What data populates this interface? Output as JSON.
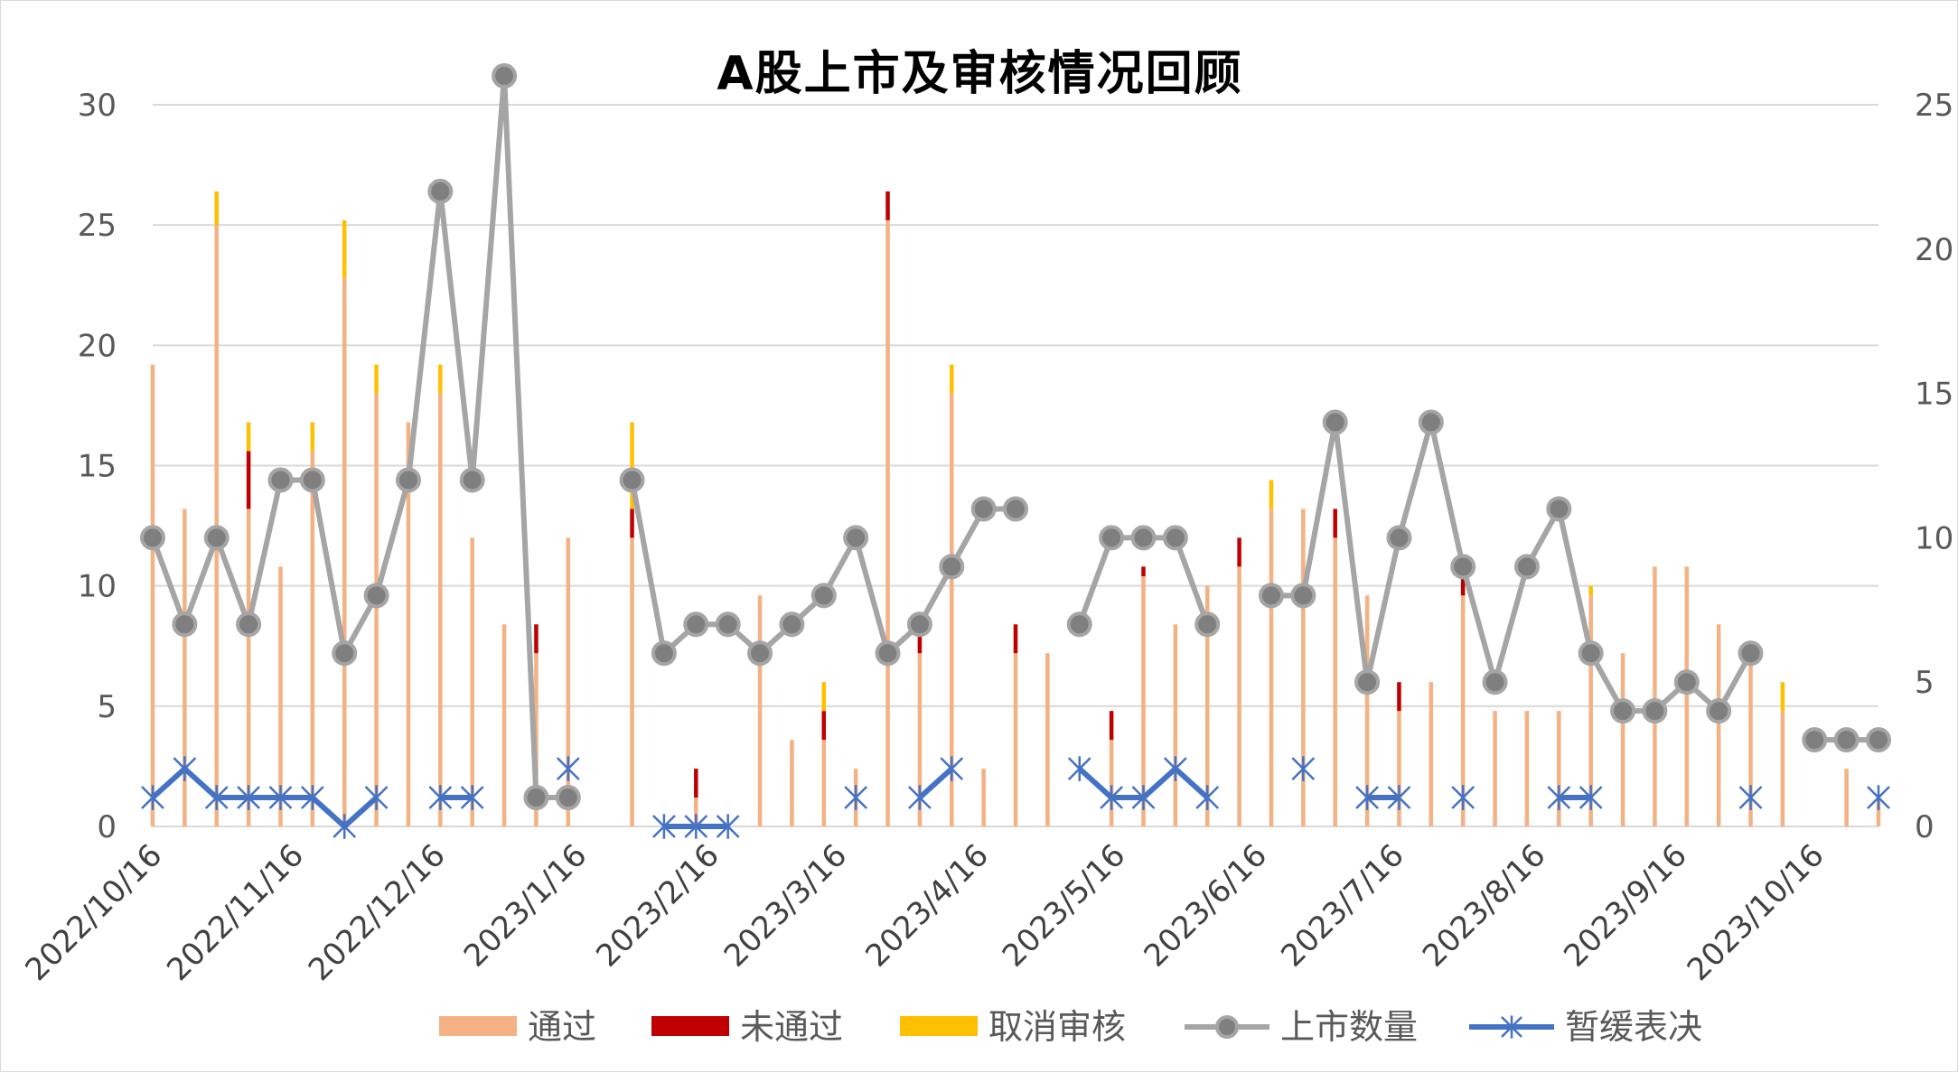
{
  "chart_data": {
    "type": "bar",
    "title": "A股上市及审核情况回顾",
    "x_tick_labels": [
      "2022/10/16",
      "2022/11/16",
      "2022/12/16",
      "2023/1/16",
      "2023/2/16",
      "2023/3/16",
      "2023/4/16",
      "2023/5/16",
      "2023/6/16",
      "2023/7/16",
      "2023/8/16",
      "2023/9/16",
      "2023/10/16"
    ],
    "x_tick_positions": [
      0,
      4.43,
      8.86,
      13.29,
      17.43,
      21.43,
      25.86,
      30.14,
      34.57,
      38.86,
      43.29,
      47.71,
      52
    ],
    "y_left": {
      "min": 0,
      "max": 30,
      "ticks": [
        0,
        5,
        10,
        15,
        20,
        25,
        30
      ]
    },
    "y_right": {
      "min": 0,
      "max": 25,
      "ticks": [
        0,
        5,
        10,
        15,
        20,
        25
      ]
    },
    "grid": true,
    "legend_position": "bottom",
    "stacked_bars": [
      {
        "name": "通过",
        "color": "#F4B183",
        "axis": "left",
        "values": [
          19.2,
          13.2,
          25,
          13.2,
          10.8,
          15.6,
          22.8,
          18,
          16.8,
          18,
          12,
          8.4,
          7.2,
          12,
          0,
          12,
          0,
          1.2,
          0,
          9.6,
          3.6,
          3.6,
          2.4,
          25.2,
          7.2,
          18,
          2.4,
          7.2,
          7.2,
          0,
          3.6,
          10.4,
          8.4,
          10,
          10.8,
          13.2,
          13.2,
          12,
          9.6,
          4.8,
          6,
          9.6,
          4.8,
          4.8,
          4.8,
          9.6,
          7.2,
          10.8,
          10.8,
          8.4,
          7.2,
          4.8,
          0,
          2.4,
          1.2
        ]
      },
      {
        "name": "未通过",
        "color": "#C00000",
        "axis": "left",
        "values": [
          0,
          0,
          0,
          2.4,
          0,
          0,
          0,
          0,
          0,
          0,
          0,
          0,
          1.2,
          0,
          0,
          1.2,
          0,
          1.2,
          0,
          0,
          0,
          1.2,
          0,
          1.2,
          1.2,
          0,
          0,
          1.2,
          0,
          0,
          1.2,
          0.4,
          0,
          0,
          1.2,
          0,
          0,
          1.2,
          0,
          1.2,
          0,
          1.2,
          0,
          0,
          0,
          0,
          0,
          0,
          0,
          0,
          0,
          0,
          0,
          0,
          0
        ]
      },
      {
        "name": "取消审核",
        "color": "#FFC000",
        "axis": "left",
        "values": [
          0,
          0,
          1.4,
          1.2,
          0,
          1.2,
          2.4,
          1.2,
          0,
          1.2,
          0,
          0,
          0,
          0,
          0,
          3.6,
          0,
          0,
          0,
          0,
          0,
          1.2,
          0,
          0,
          0,
          1.2,
          0,
          0,
          0,
          0,
          0,
          0,
          0,
          0,
          0,
          1.2,
          0,
          0,
          0,
          0,
          0,
          0,
          0,
          0,
          0,
          0.4,
          0,
          0,
          0,
          0,
          0,
          1.2,
          0,
          0,
          0
        ]
      }
    ],
    "lines": [
      {
        "name": "上市数量",
        "color": "#A5A5A5",
        "axis": "right",
        "marker": "circle",
        "values": [
          10,
          7,
          10,
          7,
          12,
          12,
          6,
          8,
          12,
          22,
          12,
          26,
          1,
          1,
          null,
          12,
          6,
          7,
          7,
          6,
          7,
          8,
          10,
          6,
          7,
          9,
          11,
          11,
          null,
          7,
          10,
          10,
          10,
          7,
          null,
          8,
          8,
          14,
          5,
          10,
          14,
          9,
          5,
          9,
          11,
          6,
          4,
          4,
          5,
          4,
          6,
          null,
          3,
          3,
          3
        ]
      },
      {
        "name": "暂缓表决",
        "color": "#4472C4",
        "axis": "right",
        "marker": "star",
        "values": [
          1,
          2,
          1,
          1,
          1,
          1,
          0,
          1,
          null,
          1,
          1,
          null,
          null,
          2,
          null,
          null,
          0,
          0,
          0,
          null,
          null,
          null,
          1,
          null,
          1,
          2,
          null,
          null,
          null,
          2,
          1,
          1,
          2,
          1,
          null,
          null,
          2,
          null,
          1,
          1,
          null,
          1,
          null,
          null,
          1,
          1,
          null,
          null,
          null,
          null,
          1,
          null,
          null,
          null,
          1
        ]
      }
    ]
  }
}
